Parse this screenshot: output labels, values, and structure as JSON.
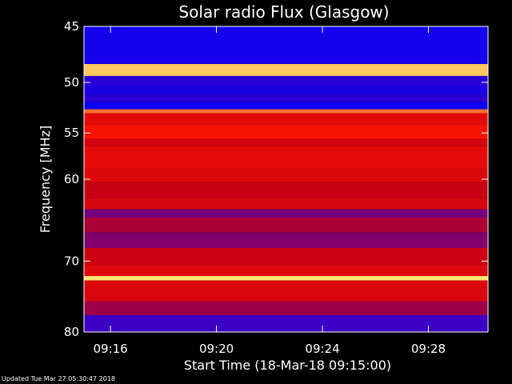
{
  "chart_data": {
    "type": "heatmap",
    "title": "Solar radio Flux (Glasgow)",
    "xlabel": "Start Time (18-Mar-18 09:15:00)",
    "ylabel": "Frequency [MHz]",
    "x_range": [
      "09:15:00",
      "09:30:15"
    ],
    "ylim": [
      45,
      80
    ],
    "x_ticks": [
      "09:16",
      "09:20",
      "09:24",
      "09:28"
    ],
    "y_ticks": [
      45,
      50,
      55,
      60,
      70,
      80
    ],
    "y_scale": "log",
    "colormap": "blue-red-yellow",
    "bands": [
      {
        "from": 45.0,
        "to": 48.3,
        "level": 0.1
      },
      {
        "from": 48.3,
        "to": 49.4,
        "level": 0.95
      },
      {
        "from": 49.4,
        "to": 50.3,
        "level": 0.2
      },
      {
        "from": 50.3,
        "to": 51.2,
        "level": 0.14
      },
      {
        "from": 51.2,
        "to": 51.9,
        "level": 0.22
      },
      {
        "from": 51.9,
        "to": 52.6,
        "level": 0.05
      },
      {
        "from": 52.6,
        "to": 53.0,
        "level": 0.85
      },
      {
        "from": 53.0,
        "to": 54.2,
        "level": 0.62
      },
      {
        "from": 54.2,
        "to": 55.6,
        "level": 0.72
      },
      {
        "from": 55.6,
        "to": 56.4,
        "level": 0.55
      },
      {
        "from": 56.4,
        "to": 58.8,
        "level": 0.63
      },
      {
        "from": 58.8,
        "to": 60.3,
        "level": 0.6
      },
      {
        "from": 60.3,
        "to": 62.2,
        "level": 0.5
      },
      {
        "from": 62.2,
        "to": 63.5,
        "level": 0.56
      },
      {
        "from": 63.5,
        "to": 64.5,
        "level": 0.38
      },
      {
        "from": 64.5,
        "to": 66.3,
        "level": 0.46
      },
      {
        "from": 66.3,
        "to": 68.3,
        "level": 0.4
      },
      {
        "from": 68.3,
        "to": 70.5,
        "level": 0.52
      },
      {
        "from": 70.5,
        "to": 72.0,
        "level": 0.6
      },
      {
        "from": 72.0,
        "to": 72.6,
        "level": 0.98
      },
      {
        "from": 72.6,
        "to": 75.5,
        "level": 0.58
      },
      {
        "from": 75.5,
        "to": 77.5,
        "level": 0.44
      },
      {
        "from": 77.5,
        "to": 80.0,
        "level": 0.3
      }
    ],
    "grid": false
  },
  "footer_text": "Updated Tue Mar 27 05:30:47 2018"
}
